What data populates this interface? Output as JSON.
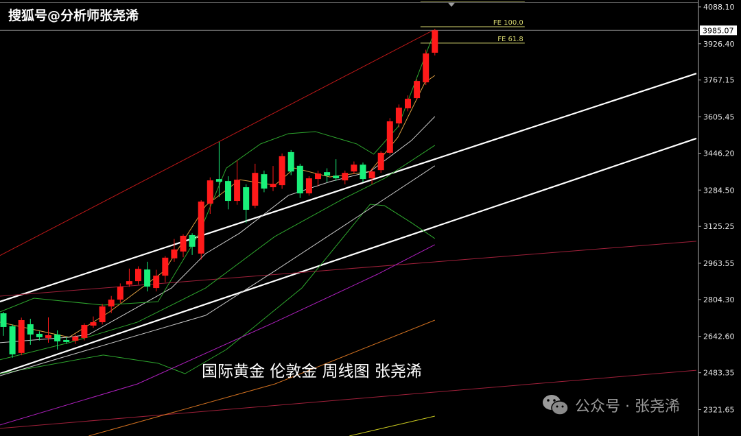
{
  "watermark_top": "搜狐号@分析师张尧浠",
  "caption": "国际黄金  伦敦金  周线图 张尧浠",
  "watermark_bottom": {
    "icon": "wechat-icon",
    "text": "公众号 · 张尧浠"
  },
  "colors": {
    "background": "#000000",
    "up": "#ff1a1a",
    "down": "#19f07a",
    "axis": "#b0b0b0"
  },
  "chart_data": {
    "type": "candlestick",
    "title": "",
    "yaxis": {
      "position": "right",
      "range": [
        2206,
        4118
      ],
      "ticks": [
        "4088.10",
        "3926.40",
        "3767.15",
        "3605.45",
        "3446.20",
        "3284.50",
        "3125.25",
        "2963.55",
        "2804.30",
        "2642.60",
        "2483.35",
        "2321.65"
      ],
      "tick_values": [
        4088.1,
        3926.4,
        3767.15,
        3605.45,
        3446.2,
        3284.5,
        3125.25,
        2963.55,
        2804.3,
        2642.6,
        2483.35,
        2321.65
      ],
      "current_price_label": "3985.07",
      "current_price": 3985.07
    },
    "xaxis": {
      "unit": "weekly bar index",
      "range": [
        -0.4,
        77.1
      ]
    },
    "grid": false,
    "up_color_meaning": "red = rising, green = falling",
    "candles_ohlc": [
      [
        2744,
        2750,
        2645,
        2684
      ],
      [
        2687,
        2695,
        2549,
        2564
      ],
      [
        2570,
        2725,
        2560,
        2714
      ],
      [
        2696,
        2720,
        2606,
        2651
      ],
      [
        2654,
        2665,
        2625,
        2639
      ],
      [
        2636,
        2726,
        2615,
        2648
      ],
      [
        2651,
        2669,
        2585,
        2621
      ],
      [
        2627,
        2640,
        2610,
        2618
      ],
      [
        2624,
        2650,
        2610,
        2642
      ],
      [
        2636,
        2700,
        2625,
        2693
      ],
      [
        2690,
        2730,
        2680,
        2705
      ],
      [
        2705,
        2785,
        2695,
        2774
      ],
      [
        2774,
        2820,
        2745,
        2804
      ],
      [
        2804,
        2875,
        2790,
        2861
      ],
      [
        2870,
        2940,
        2860,
        2885
      ],
      [
        2885,
        2950,
        2870,
        2939
      ],
      [
        2936,
        2970,
        2840,
        2861
      ],
      [
        2855,
        2935,
        2840,
        2909
      ],
      [
        2909,
        2995,
        2880,
        2988
      ],
      [
        2985,
        3070,
        2970,
        3024
      ],
      [
        3015,
        3090,
        2990,
        3084
      ],
      [
        3087,
        3095,
        3000,
        3036
      ],
      [
        3006,
        3240,
        2980,
        3234
      ],
      [
        3225,
        3340,
        3180,
        3327
      ],
      [
        3333,
        3496,
        3255,
        3321
      ],
      [
        3324,
        3345,
        3200,
        3237
      ],
      [
        3237,
        3415,
        3220,
        3330
      ],
      [
        3297,
        3310,
        3140,
        3198
      ],
      [
        3216,
        3400,
        3205,
        3360
      ],
      [
        3354,
        3370,
        3275,
        3291
      ],
      [
        3297,
        3390,
        3280,
        3312
      ],
      [
        3306,
        3445,
        3290,
        3433
      ],
      [
        3451,
        3460,
        3350,
        3366
      ],
      [
        3391,
        3400,
        3250,
        3270
      ],
      [
        3270,
        3345,
        3260,
        3336
      ],
      [
        3333,
        3370,
        3300,
        3357
      ],
      [
        3363,
        3380,
        3320,
        3348
      ],
      [
        3348,
        3420,
        3325,
        3336
      ],
      [
        3327,
        3370,
        3310,
        3360
      ],
      [
        3366,
        3410,
        3355,
        3396
      ],
      [
        3396,
        3405,
        3320,
        3333
      ],
      [
        3336,
        3380,
        3310,
        3366
      ],
      [
        3372,
        3455,
        3360,
        3448
      ],
      [
        3448,
        3600,
        3440,
        3586
      ],
      [
        3577,
        3660,
        3560,
        3646
      ],
      [
        3643,
        3700,
        3630,
        3685
      ],
      [
        3688,
        3770,
        3680,
        3763
      ],
      [
        3757,
        3900,
        3745,
        3884
      ],
      [
        3887,
        3992,
        3875,
        3985.07
      ]
    ],
    "levels": [
      {
        "label": "FE 100.0",
        "price": 4001,
        "color": "#d8d870",
        "from": 46.4,
        "to": 58
      },
      {
        "label": "FE 61.8",
        "price": 3929,
        "color": "#d8d870",
        "from": 46.4,
        "to": 58
      },
      {
        "label": "",
        "price": 4109,
        "color": "#d8d870",
        "from": 46.4,
        "to": 58
      }
    ],
    "trend_lines": [
      {
        "color": "#ffffff",
        "width": 2.2,
        "points": [
          [
            -0.4,
            2795
          ],
          [
            77.1,
            3796
          ]
        ]
      },
      {
        "color": "#ffffff",
        "width": 2.2,
        "points": [
          [
            -0.4,
            2479
          ],
          [
            77.1,
            3511
          ]
        ]
      },
      {
        "color": "#c01818",
        "width": 1,
        "points": [
          [
            -0.4,
            2997
          ],
          [
            47.7,
            3983
          ]
        ]
      },
      {
        "color": "#a0203a",
        "width": 1,
        "points": [
          [
            -0.4,
            2819
          ],
          [
            77.1,
            3060
          ]
        ]
      },
      {
        "color": "#a0203a",
        "width": 1,
        "points": [
          [
            -0.4,
            2239
          ],
          [
            77.1,
            2494
          ]
        ]
      }
    ],
    "indicator_lines": [
      {
        "color": "#e0a040",
        "points": [
          [
            -0.4,
            2705
          ],
          [
            7.3,
            2639
          ],
          [
            11.8,
            2750
          ],
          [
            17.9,
            2930
          ],
          [
            22.5,
            3216
          ],
          [
            26.3,
            3330
          ],
          [
            30.2,
            3306
          ],
          [
            32.4,
            3381
          ],
          [
            36.3,
            3342
          ],
          [
            40.8,
            3366
          ],
          [
            43.9,
            3517
          ],
          [
            46.9,
            3757
          ],
          [
            48,
            3787
          ]
        ]
      },
      {
        "color": "#d0d0d0",
        "points": [
          [
            -0.4,
            2615
          ],
          [
            7.3,
            2639
          ],
          [
            9.5,
            2651
          ],
          [
            18.7,
            2855
          ],
          [
            22.5,
            3006
          ],
          [
            26.3,
            3096
          ],
          [
            31.7,
            3261
          ],
          [
            36.3,
            3321
          ],
          [
            40.8,
            3366
          ],
          [
            45.4,
            3502
          ],
          [
            48,
            3607
          ]
        ]
      },
      {
        "color": "#2ea82e",
        "points": [
          [
            -0.4,
            2750
          ],
          [
            3.4,
            2810
          ],
          [
            11.1,
            2780
          ],
          [
            17.2,
            2795
          ],
          [
            21.8,
            3096
          ],
          [
            24.8,
            3381
          ],
          [
            28.6,
            3487
          ],
          [
            31.7,
            3532
          ],
          [
            34.7,
            3541
          ],
          [
            39.3,
            3487
          ],
          [
            41.2,
            3442
          ],
          [
            43.9,
            3562
          ],
          [
            48,
            3983
          ]
        ]
      },
      {
        "color": "#2ea82e",
        "points": [
          [
            -0.4,
            2540
          ],
          [
            7.3,
            2615
          ],
          [
            14.9,
            2705
          ],
          [
            22.5,
            2855
          ],
          [
            30.2,
            3081
          ],
          [
            37.8,
            3246
          ],
          [
            42.4,
            3336
          ],
          [
            48,
            3481
          ]
        ]
      },
      {
        "color": "#2ea82e",
        "points": [
          [
            -0.4,
            2479
          ],
          [
            11.1,
            2561
          ],
          [
            17.2,
            2525
          ],
          [
            20.2,
            2479
          ],
          [
            24.8,
            2585
          ],
          [
            33.2,
            2855
          ],
          [
            40.8,
            3222
          ],
          [
            42.4,
            3216
          ],
          [
            45.4,
            3141
          ],
          [
            48,
            3072
          ]
        ]
      },
      {
        "color": "#c8c8c8",
        "points": [
          [
            -0.4,
            2470
          ],
          [
            22.5,
            2735
          ],
          [
            30.2,
            2930
          ],
          [
            37.8,
            3126
          ],
          [
            48,
            3391
          ]
        ]
      },
      {
        "color": "#b020c0",
        "points": [
          [
            -0.4,
            2254
          ],
          [
            14.9,
            2434
          ],
          [
            30.2,
            2705
          ],
          [
            41.6,
            2915
          ],
          [
            48,
            3045
          ]
        ]
      },
      {
        "color": "#d07020",
        "points": [
          [
            9.5,
            2206
          ],
          [
            30.2,
            2434
          ],
          [
            48,
            2714
          ]
        ]
      },
      {
        "color": "#c8c820",
        "points": [
          [
            38.5,
            2206
          ],
          [
            48,
            2293
          ]
        ]
      }
    ]
  }
}
